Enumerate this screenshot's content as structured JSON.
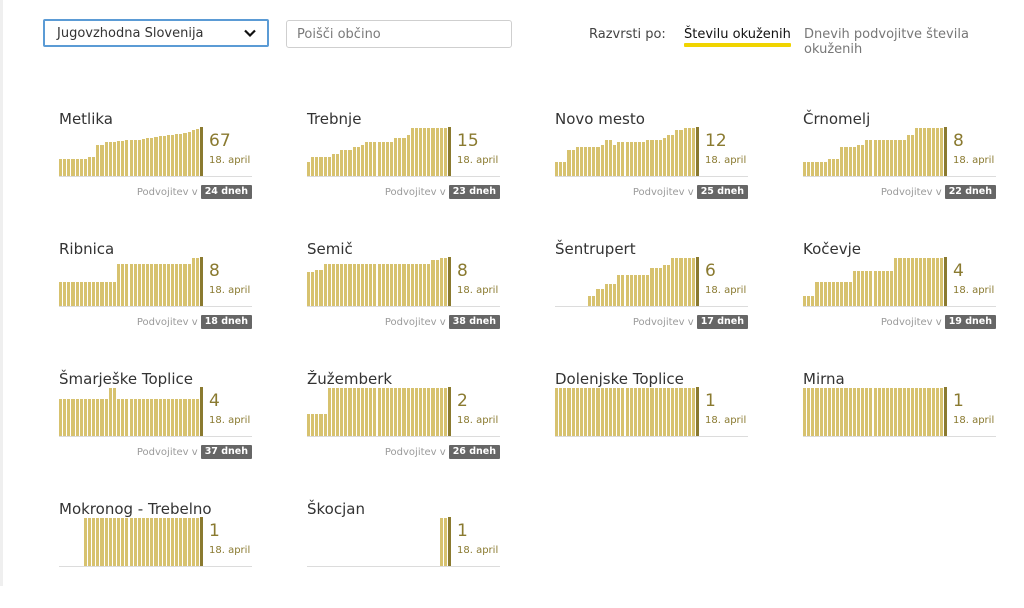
{
  "filters": {
    "region_value": "Jugovzhodna Slovenija",
    "search_placeholder": "Poišči občino",
    "sort_label": "Razvrsti po:",
    "sort_options": [
      "Številu okuženih",
      "Dnevih podvojitve števila okuženih"
    ],
    "active_sort": "Številu okuženih"
  },
  "colors": {
    "bar": "#d7c26f",
    "current_line": "#8a7a30",
    "accent_underline": "#f0d400",
    "badge": "#666666"
  },
  "municipalities": [
    {
      "name": "Metlika",
      "count": "67",
      "date": "18. april",
      "doubling_label": "Podvojitev v",
      "doubling": "24 dneh",
      "bars": [
        0.35,
        0.35,
        0.35,
        0.35,
        0.35,
        0.35,
        0.35,
        0.4,
        0.4,
        0.65,
        0.65,
        0.7,
        0.7,
        0.7,
        0.72,
        0.72,
        0.74,
        0.74,
        0.76,
        0.76,
        0.78,
        0.8,
        0.8,
        0.82,
        0.84,
        0.84,
        0.86,
        0.86,
        0.88,
        0.88,
        0.9,
        0.92,
        0.95,
        0.97
      ]
    },
    {
      "name": "Trebnje",
      "count": "15",
      "date": "18. april",
      "doubling_label": "Podvojitev v",
      "doubling": "23 dneh",
      "bars": [
        0.3,
        0.4,
        0.4,
        0.4,
        0.4,
        0.4,
        0.45,
        0.45,
        0.55,
        0.55,
        0.55,
        0.6,
        0.6,
        0.65,
        0.7,
        0.7,
        0.7,
        0.7,
        0.7,
        0.7,
        0.7,
        0.8,
        0.8,
        0.8,
        0.85,
        1,
        1,
        1,
        1,
        1,
        1,
        1,
        1,
        1
      ]
    },
    {
      "name": "Novo mesto",
      "count": "12",
      "date": "18. april",
      "doubling_label": "Podvojitev v",
      "doubling": "25 dneh",
      "bars": [
        0.3,
        0.3,
        0.3,
        0.55,
        0.55,
        0.6,
        0.6,
        0.6,
        0.6,
        0.6,
        0.6,
        0.65,
        0.75,
        0.75,
        0.65,
        0.7,
        0.7,
        0.7,
        0.7,
        0.7,
        0.7,
        0.7,
        0.75,
        0.75,
        0.75,
        0.75,
        0.8,
        0.85,
        0.85,
        0.95,
        0.95,
        1,
        1,
        1
      ]
    },
    {
      "name": "Črnomelj",
      "count": "8",
      "date": "18. april",
      "doubling_label": "Podvojitev v",
      "doubling": "22 dneh",
      "bars": [
        0.3,
        0.3,
        0.3,
        0.3,
        0.3,
        0.3,
        0.35,
        0.35,
        0.35,
        0.6,
        0.6,
        0.6,
        0.6,
        0.65,
        0.65,
        0.75,
        0.75,
        0.75,
        0.75,
        0.75,
        0.75,
        0.75,
        0.75,
        0.75,
        0.75,
        0.85,
        0.85,
        1,
        1,
        1,
        1,
        1,
        1,
        1
      ]
    },
    {
      "name": "Ribnica",
      "count": "8",
      "date": "18. april",
      "doubling_label": "Podvojitev v",
      "doubling": "18 dneh",
      "bars": [
        0.5,
        0.5,
        0.5,
        0.5,
        0.5,
        0.5,
        0.5,
        0.5,
        0.5,
        0.5,
        0.5,
        0.5,
        0.5,
        0.5,
        0.88,
        0.88,
        0.88,
        0.88,
        0.88,
        0.88,
        0.88,
        0.88,
        0.88,
        0.88,
        0.88,
        0.88,
        0.88,
        0.88,
        0.88,
        0.88,
        0.88,
        0.88,
        1,
        1
      ]
    },
    {
      "name": "Semič",
      "count": "8",
      "date": "18. april",
      "doubling_label": "Podvojitev v",
      "doubling": "38 dneh",
      "bars": [
        0.7,
        0.7,
        0.75,
        0.75,
        0.88,
        0.88,
        0.88,
        0.88,
        0.88,
        0.88,
        0.88,
        0.88,
        0.88,
        0.88,
        0.88,
        0.88,
        0.88,
        0.88,
        0.88,
        0.88,
        0.88,
        0.88,
        0.88,
        0.88,
        0.88,
        0.88,
        0.88,
        0.88,
        0.88,
        0.88,
        0.95,
        0.95,
        1,
        1
      ]
    },
    {
      "name": "Šentrupert",
      "count": "6",
      "date": "18. april",
      "doubling_label": "Podvojitev v",
      "doubling": "17 dneh",
      "bars": [
        0,
        0,
        0,
        0,
        0,
        0,
        0,
        0,
        0.2,
        0.2,
        0.35,
        0.35,
        0.45,
        0.45,
        0.45,
        0.65,
        0.65,
        0.65,
        0.65,
        0.65,
        0.65,
        0.65,
        0.65,
        0.8,
        0.8,
        0.8,
        0.85,
        0.85,
        1,
        1,
        1,
        1,
        1,
        1
      ]
    },
    {
      "name": "Kočevje",
      "count": "4",
      "date": "18. april",
      "doubling_label": "Podvojitev v",
      "doubling": "19 dneh",
      "bars": [
        0.2,
        0.2,
        0.2,
        0.5,
        0.5,
        0.5,
        0.5,
        0.5,
        0.5,
        0.5,
        0.5,
        0.5,
        0.72,
        0.72,
        0.72,
        0.72,
        0.72,
        0.72,
        0.72,
        0.72,
        0.72,
        0.72,
        1,
        1,
        1,
        1,
        1,
        1,
        1,
        1,
        1,
        1,
        1,
        1
      ]
    },
    {
      "name": "Šmarješke Toplice",
      "count": "4",
      "date": "18. april",
      "doubling_label": "Podvojitev v",
      "doubling": "37 dneh",
      "bars": [
        0.78,
        0.78,
        0.78,
        0.78,
        0.78,
        0.78,
        0.78,
        0.78,
        0.78,
        0.78,
        0.78,
        0.78,
        1,
        1,
        0.78,
        0.78,
        0.78,
        0.78,
        0.78,
        0.78,
        0.78,
        0.78,
        0.78,
        0.78,
        0.78,
        0.78,
        0.78,
        0.78,
        0.78,
        0.78,
        0.78,
        0.78,
        0.78,
        0.78
      ]
    },
    {
      "name": "Žužemberk",
      "count": "2",
      "date": "18. april",
      "doubling_label": "Podvojitev v",
      "doubling": "26 dneh",
      "bars": [
        0.45,
        0.45,
        0.45,
        0.45,
        0.45,
        1,
        1,
        1,
        1,
        1,
        1,
        1,
        1,
        1,
        1,
        1,
        1,
        1,
        1,
        1,
        1,
        1,
        1,
        1,
        1,
        1,
        1,
        1,
        1,
        1,
        1,
        1,
        1,
        1
      ]
    },
    {
      "name": "Dolenjske Toplice",
      "count": "1",
      "date": "18. april",
      "doubling_label": "",
      "doubling": "",
      "bars": [
        1,
        1,
        1,
        1,
        1,
        1,
        1,
        1,
        1,
        1,
        1,
        1,
        1,
        1,
        1,
        1,
        1,
        1,
        1,
        1,
        1,
        1,
        1,
        1,
        1,
        1,
        1,
        1,
        1,
        1,
        1,
        1,
        1,
        1
      ]
    },
    {
      "name": "Mirna",
      "count": "1",
      "date": "18. april",
      "doubling_label": "",
      "doubling": "",
      "bars": [
        1,
        1,
        1,
        1,
        1,
        1,
        1,
        1,
        1,
        1,
        1,
        1,
        1,
        1,
        1,
        1,
        1,
        1,
        1,
        1,
        1,
        1,
        1,
        1,
        1,
        1,
        1,
        1,
        1,
        1,
        1,
        1,
        1,
        1
      ]
    },
    {
      "name": "Mokronog - Trebelno",
      "count": "1",
      "date": "18. april",
      "doubling_label": "",
      "doubling": "",
      "bars": [
        0,
        0,
        0,
        0,
        0,
        0,
        1,
        1,
        1,
        1,
        1,
        1,
        1,
        1,
        1,
        1,
        1,
        1,
        1,
        1,
        1,
        1,
        1,
        1,
        1,
        1,
        1,
        1,
        1,
        1,
        1,
        1,
        1,
        1
      ]
    },
    {
      "name": "Škocjan",
      "count": "1",
      "date": "18. april",
      "doubling_label": "",
      "doubling": "",
      "bars": [
        0,
        0,
        0,
        0,
        0,
        0,
        0,
        0,
        0,
        0,
        0,
        0,
        0,
        0,
        0,
        0,
        0,
        0,
        0,
        0,
        0,
        0,
        0,
        0,
        0,
        0,
        0,
        0,
        0,
        0,
        0,
        0,
        1,
        1
      ]
    }
  ]
}
